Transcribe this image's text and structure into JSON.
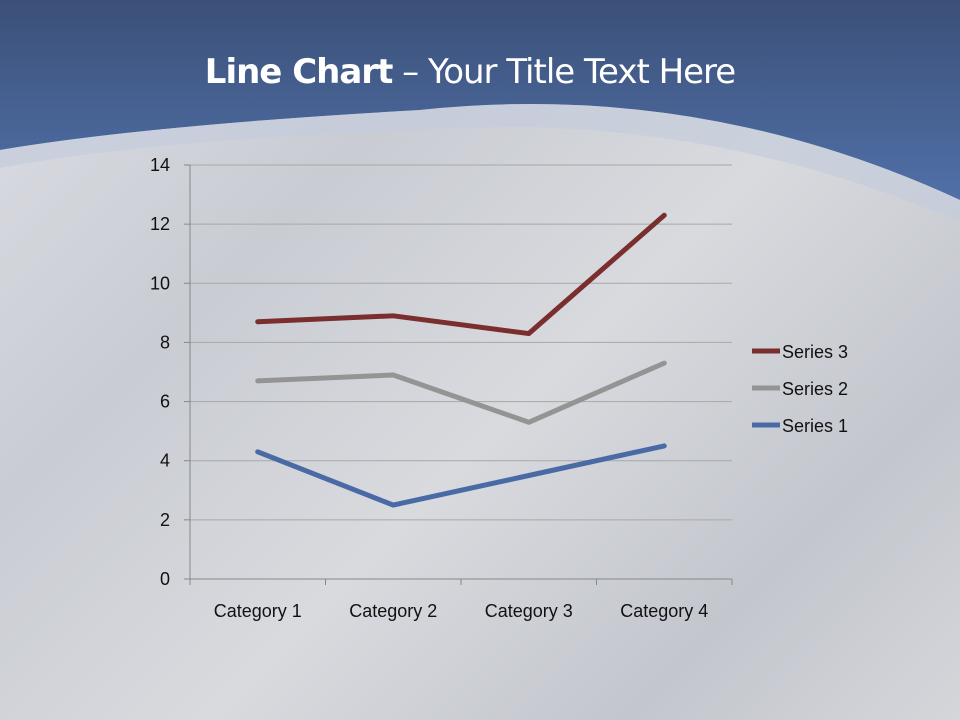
{
  "title": {
    "bold": "Line Chart",
    "rest": " – Your Title Text Here"
  },
  "colors": {
    "band": "#4a6699",
    "series1": "#4a6aa5",
    "series2": "#949494",
    "series3": "#7a2e2e"
  },
  "chart_data": {
    "type": "line",
    "stacked": true,
    "categories": [
      "Category 1",
      "Category 2",
      "Category 3",
      "Category 4"
    ],
    "series": [
      {
        "name": "Series 1",
        "values": [
          4.3,
          2.5,
          3.5,
          4.5
        ],
        "color": "#4a6aa5"
      },
      {
        "name": "Series 2",
        "values": [
          2.4,
          4.4,
          1.8,
          2.8
        ],
        "color": "#949494"
      },
      {
        "name": "Series 3",
        "values": [
          2,
          2,
          3,
          5
        ],
        "color": "#7a2e2e"
      }
    ],
    "ylim": [
      0,
      14
    ],
    "yticks": [
      "0",
      "2",
      "4",
      "6",
      "8",
      "10",
      "12",
      "14"
    ],
    "grid": true,
    "legend": "right"
  }
}
